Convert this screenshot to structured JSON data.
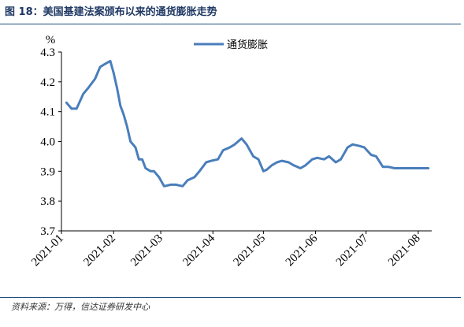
{
  "figure": {
    "title": "图 18：美国基建法案颁布以来的通货膨胀走势",
    "source": "资料来源：万得，信达证券研发中心"
  },
  "chart_data": {
    "type": "line",
    "ylabel": "%",
    "ylim": [
      3.7,
      4.3
    ],
    "yticks": [
      "4.3",
      "4.2",
      "4.1",
      "4.0",
      "3.9",
      "3.8",
      "3.7"
    ],
    "xticks": [
      "2021-01",
      "2021-02",
      "2021-03",
      "2021-04",
      "2021-05",
      "2021-06",
      "2021-07",
      "2021-08"
    ],
    "legend_position": "top-center",
    "grid": false,
    "series": [
      {
        "name": "通货膨胀",
        "color": "#4a7ebb",
        "x": [
          "2021-01-04",
          "2021-01-07",
          "2021-01-10",
          "2021-01-14",
          "2021-01-17",
          "2021-01-21",
          "2021-01-24",
          "2021-01-27",
          "2021-01-30",
          "2021-02-01",
          "2021-02-03",
          "2021-02-05",
          "2021-02-07",
          "2021-02-09",
          "2021-02-11",
          "2021-02-14",
          "2021-02-16",
          "2021-02-18",
          "2021-02-20",
          "2021-02-23",
          "2021-02-25",
          "2021-02-28",
          "2021-03-03",
          "2021-03-07",
          "2021-03-10",
          "2021-03-14",
          "2021-03-17",
          "2021-03-21",
          "2021-03-24",
          "2021-03-28",
          "2021-03-31",
          "2021-04-04",
          "2021-04-07",
          "2021-04-11",
          "2021-04-14",
          "2021-04-18",
          "2021-04-21",
          "2021-04-25",
          "2021-04-28",
          "2021-05-01",
          "2021-05-03",
          "2021-05-06",
          "2021-05-09",
          "2021-05-12",
          "2021-05-16",
          "2021-05-19",
          "2021-05-23",
          "2021-05-26",
          "2021-05-30",
          "2021-06-02",
          "2021-06-06",
          "2021-06-09",
          "2021-06-13",
          "2021-06-16",
          "2021-06-20",
          "2021-06-23",
          "2021-06-27",
          "2021-06-30",
          "2021-07-04",
          "2021-07-07",
          "2021-07-11",
          "2021-07-14",
          "2021-07-18",
          "2021-07-21",
          "2021-07-25",
          "2021-07-28",
          "2021-08-01",
          "2021-08-04",
          "2021-08-07"
        ],
        "y": [
          4.13,
          4.11,
          4.11,
          4.16,
          4.18,
          4.21,
          4.25,
          4.26,
          4.27,
          4.23,
          4.18,
          4.12,
          4.09,
          4.05,
          4.0,
          3.98,
          3.94,
          3.94,
          3.91,
          3.9,
          3.9,
          3.88,
          3.85,
          3.855,
          3.855,
          3.85,
          3.87,
          3.88,
          3.9,
          3.93,
          3.935,
          3.94,
          3.97,
          3.98,
          3.99,
          4.01,
          3.99,
          3.95,
          3.94,
          3.9,
          3.905,
          3.92,
          3.93,
          3.935,
          3.93,
          3.92,
          3.91,
          3.92,
          3.94,
          3.945,
          3.94,
          3.95,
          3.93,
          3.94,
          3.98,
          3.99,
          3.985,
          3.98,
          3.955,
          3.95,
          3.915,
          3.915,
          3.91,
          3.91,
          3.91,
          3.91,
          3.91,
          3.91,
          3.91
        ]
      }
    ]
  }
}
